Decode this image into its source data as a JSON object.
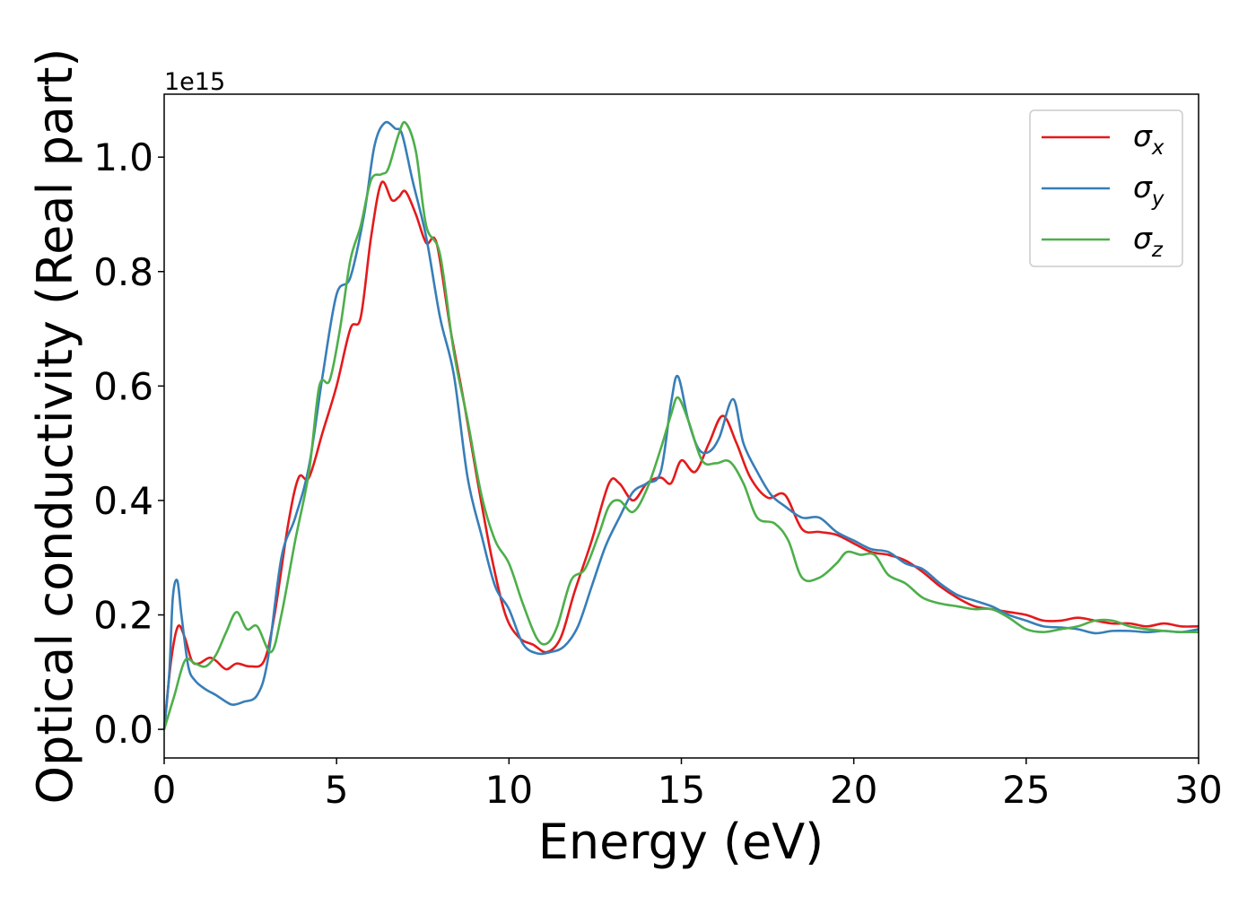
{
  "chart_data": {
    "type": "line",
    "title": "",
    "xlabel": "Energy (eV)",
    "ylabel": "Optical conductivity (Real part)",
    "y_offset_label": "1e15",
    "xlim": [
      0,
      30
    ],
    "ylim": [
      -0.05,
      1.11
    ],
    "x_ticks": [
      0,
      5,
      10,
      15,
      20,
      25,
      30
    ],
    "x_tick_labels": [
      "0",
      "5",
      "10",
      "15",
      "20",
      "25",
      "30"
    ],
    "y_ticks": [
      0.0,
      0.2,
      0.4,
      0.6,
      0.8,
      1.0
    ],
    "y_tick_labels": [
      "0.0",
      "0.2",
      "0.4",
      "0.6",
      "0.8",
      "1.0"
    ],
    "grid": false,
    "legend_position": "top-right",
    "series": [
      {
        "name": "σx",
        "legend_base": "σ",
        "legend_sub": "x",
        "color": "#e41a1c",
        "points": [
          [
            0,
            0
          ],
          [
            0.2,
            0.12
          ],
          [
            0.4,
            0.18
          ],
          [
            0.6,
            0.16
          ],
          [
            0.8,
            0.12
          ],
          [
            1.0,
            0.115
          ],
          [
            1.3,
            0.125
          ],
          [
            1.5,
            0.12
          ],
          [
            1.8,
            0.105
          ],
          [
            2.1,
            0.115
          ],
          [
            2.5,
            0.11
          ],
          [
            2.9,
            0.12
          ],
          [
            3.2,
            0.2
          ],
          [
            3.6,
            0.36
          ],
          [
            3.9,
            0.44
          ],
          [
            4.2,
            0.44
          ],
          [
            4.6,
            0.52
          ],
          [
            5.0,
            0.6
          ],
          [
            5.4,
            0.7
          ],
          [
            5.7,
            0.72
          ],
          [
            6.0,
            0.86
          ],
          [
            6.3,
            0.955
          ],
          [
            6.6,
            0.925
          ],
          [
            6.8,
            0.93
          ],
          [
            7.0,
            0.94
          ],
          [
            7.3,
            0.9
          ],
          [
            7.6,
            0.85
          ],
          [
            7.9,
            0.85
          ],
          [
            8.3,
            0.7
          ],
          [
            8.7,
            0.57
          ],
          [
            9.1,
            0.43
          ],
          [
            9.5,
            0.3
          ],
          [
            9.9,
            0.2
          ],
          [
            10.3,
            0.16
          ],
          [
            10.7,
            0.148
          ],
          [
            11.1,
            0.135
          ],
          [
            11.5,
            0.16
          ],
          [
            11.9,
            0.24
          ],
          [
            12.4,
            0.33
          ],
          [
            12.9,
            0.43
          ],
          [
            13.2,
            0.43
          ],
          [
            13.6,
            0.4
          ],
          [
            14.0,
            0.43
          ],
          [
            14.4,
            0.44
          ],
          [
            14.7,
            0.43
          ],
          [
            15.0,
            0.47
          ],
          [
            15.4,
            0.45
          ],
          [
            15.8,
            0.5
          ],
          [
            16.2,
            0.548
          ],
          [
            16.6,
            0.5
          ],
          [
            17.0,
            0.44
          ],
          [
            17.5,
            0.405
          ],
          [
            18.0,
            0.41
          ],
          [
            18.5,
            0.35
          ],
          [
            19.0,
            0.345
          ],
          [
            19.5,
            0.34
          ],
          [
            20.0,
            0.325
          ],
          [
            20.5,
            0.31
          ],
          [
            21.0,
            0.305
          ],
          [
            21.5,
            0.295
          ],
          [
            22.0,
            0.275
          ],
          [
            22.5,
            0.25
          ],
          [
            23.0,
            0.23
          ],
          [
            23.5,
            0.215
          ],
          [
            24.0,
            0.21
          ],
          [
            24.5,
            0.205
          ],
          [
            25.0,
            0.2
          ],
          [
            25.5,
            0.19
          ],
          [
            26.0,
            0.19
          ],
          [
            26.5,
            0.195
          ],
          [
            27.0,
            0.19
          ],
          [
            27.5,
            0.185
          ],
          [
            28.0,
            0.185
          ],
          [
            28.5,
            0.18
          ],
          [
            29.0,
            0.185
          ],
          [
            29.5,
            0.18
          ],
          [
            30.0,
            0.18
          ]
        ]
      },
      {
        "name": "σy",
        "legend_base": "σ",
        "legend_sub": "y",
        "color": "#377eb8",
        "points": [
          [
            0,
            0
          ],
          [
            0.15,
            0.1
          ],
          [
            0.25,
            0.23
          ],
          [
            0.38,
            0.26
          ],
          [
            0.5,
            0.2
          ],
          [
            0.7,
            0.11
          ],
          [
            0.9,
            0.085
          ],
          [
            1.2,
            0.07
          ],
          [
            1.5,
            0.06
          ],
          [
            1.8,
            0.048
          ],
          [
            2.0,
            0.043
          ],
          [
            2.3,
            0.048
          ],
          [
            2.7,
            0.06
          ],
          [
            3.0,
            0.12
          ],
          [
            3.4,
            0.3
          ],
          [
            3.8,
            0.37
          ],
          [
            4.2,
            0.46
          ],
          [
            4.6,
            0.62
          ],
          [
            5.0,
            0.76
          ],
          [
            5.4,
            0.79
          ],
          [
            5.8,
            0.9
          ],
          [
            6.1,
            1.02
          ],
          [
            6.4,
            1.06
          ],
          [
            6.7,
            1.05
          ],
          [
            6.9,
            1.04
          ],
          [
            7.2,
            0.96
          ],
          [
            7.6,
            0.86
          ],
          [
            8.0,
            0.72
          ],
          [
            8.4,
            0.62
          ],
          [
            8.8,
            0.44
          ],
          [
            9.2,
            0.34
          ],
          [
            9.6,
            0.25
          ],
          [
            10.0,
            0.21
          ],
          [
            10.4,
            0.15
          ],
          [
            10.8,
            0.133
          ],
          [
            11.2,
            0.135
          ],
          [
            11.6,
            0.145
          ],
          [
            12.0,
            0.18
          ],
          [
            12.4,
            0.25
          ],
          [
            12.8,
            0.32
          ],
          [
            13.2,
            0.37
          ],
          [
            13.6,
            0.415
          ],
          [
            14.0,
            0.43
          ],
          [
            14.4,
            0.45
          ],
          [
            14.7,
            0.57
          ],
          [
            14.9,
            0.617
          ],
          [
            15.2,
            0.54
          ],
          [
            15.5,
            0.49
          ],
          [
            15.8,
            0.485
          ],
          [
            16.1,
            0.51
          ],
          [
            16.5,
            0.577
          ],
          [
            16.8,
            0.5
          ],
          [
            17.2,
            0.45
          ],
          [
            17.6,
            0.41
          ],
          [
            18.0,
            0.39
          ],
          [
            18.5,
            0.37
          ],
          [
            19.0,
            0.37
          ],
          [
            19.5,
            0.345
          ],
          [
            20.0,
            0.33
          ],
          [
            20.5,
            0.315
          ],
          [
            21.0,
            0.31
          ],
          [
            21.5,
            0.29
          ],
          [
            22.0,
            0.28
          ],
          [
            22.5,
            0.255
          ],
          [
            23.0,
            0.235
          ],
          [
            23.5,
            0.225
          ],
          [
            24.0,
            0.215
          ],
          [
            24.5,
            0.2
          ],
          [
            25.0,
            0.19
          ],
          [
            25.5,
            0.18
          ],
          [
            26.0,
            0.178
          ],
          [
            26.5,
            0.175
          ],
          [
            27.0,
            0.168
          ],
          [
            27.5,
            0.172
          ],
          [
            28.0,
            0.172
          ],
          [
            28.5,
            0.17
          ],
          [
            29.0,
            0.172
          ],
          [
            29.5,
            0.17
          ],
          [
            30.0,
            0.175
          ]
        ]
      },
      {
        "name": "σz",
        "legend_base": "σ",
        "legend_sub": "z",
        "color": "#4daf4a",
        "points": [
          [
            0,
            0
          ],
          [
            0.3,
            0.06
          ],
          [
            0.6,
            0.12
          ],
          [
            0.9,
            0.115
          ],
          [
            1.2,
            0.11
          ],
          [
            1.5,
            0.13
          ],
          [
            1.8,
            0.17
          ],
          [
            2.1,
            0.205
          ],
          [
            2.4,
            0.175
          ],
          [
            2.7,
            0.18
          ],
          [
            3.1,
            0.135
          ],
          [
            3.4,
            0.2
          ],
          [
            3.8,
            0.33
          ],
          [
            4.2,
            0.45
          ],
          [
            4.5,
            0.6
          ],
          [
            4.8,
            0.61
          ],
          [
            5.1,
            0.7
          ],
          [
            5.4,
            0.82
          ],
          [
            5.7,
            0.88
          ],
          [
            6.0,
            0.96
          ],
          [
            6.3,
            0.97
          ],
          [
            6.5,
            0.98
          ],
          [
            6.8,
            1.04
          ],
          [
            7.0,
            1.06
          ],
          [
            7.3,
            1.01
          ],
          [
            7.6,
            0.88
          ],
          [
            8.0,
            0.83
          ],
          [
            8.4,
            0.66
          ],
          [
            8.8,
            0.54
          ],
          [
            9.2,
            0.41
          ],
          [
            9.6,
            0.33
          ],
          [
            10.0,
            0.29
          ],
          [
            10.4,
            0.22
          ],
          [
            10.8,
            0.16
          ],
          [
            11.1,
            0.15
          ],
          [
            11.4,
            0.18
          ],
          [
            11.8,
            0.26
          ],
          [
            12.2,
            0.28
          ],
          [
            12.6,
            0.34
          ],
          [
            12.9,
            0.39
          ],
          [
            13.2,
            0.4
          ],
          [
            13.6,
            0.38
          ],
          [
            14.0,
            0.42
          ],
          [
            14.4,
            0.49
          ],
          [
            14.7,
            0.55
          ],
          [
            14.9,
            0.58
          ],
          [
            15.2,
            0.54
          ],
          [
            15.6,
            0.47
          ],
          [
            16.0,
            0.465
          ],
          [
            16.4,
            0.468
          ],
          [
            16.8,
            0.43
          ],
          [
            17.2,
            0.37
          ],
          [
            17.7,
            0.36
          ],
          [
            18.1,
            0.33
          ],
          [
            18.5,
            0.265
          ],
          [
            19.0,
            0.265
          ],
          [
            19.5,
            0.29
          ],
          [
            19.8,
            0.31
          ],
          [
            20.2,
            0.305
          ],
          [
            20.6,
            0.305
          ],
          [
            21.0,
            0.27
          ],
          [
            21.5,
            0.255
          ],
          [
            22.0,
            0.23
          ],
          [
            22.5,
            0.22
          ],
          [
            23.0,
            0.215
          ],
          [
            23.5,
            0.21
          ],
          [
            24.0,
            0.21
          ],
          [
            24.5,
            0.195
          ],
          [
            25.0,
            0.175
          ],
          [
            25.5,
            0.17
          ],
          [
            26.0,
            0.175
          ],
          [
            26.5,
            0.18
          ],
          [
            27.0,
            0.19
          ],
          [
            27.5,
            0.19
          ],
          [
            28.0,
            0.18
          ],
          [
            28.5,
            0.175
          ],
          [
            29.0,
            0.172
          ],
          [
            29.5,
            0.17
          ],
          [
            30.0,
            0.17
          ]
        ]
      }
    ]
  }
}
